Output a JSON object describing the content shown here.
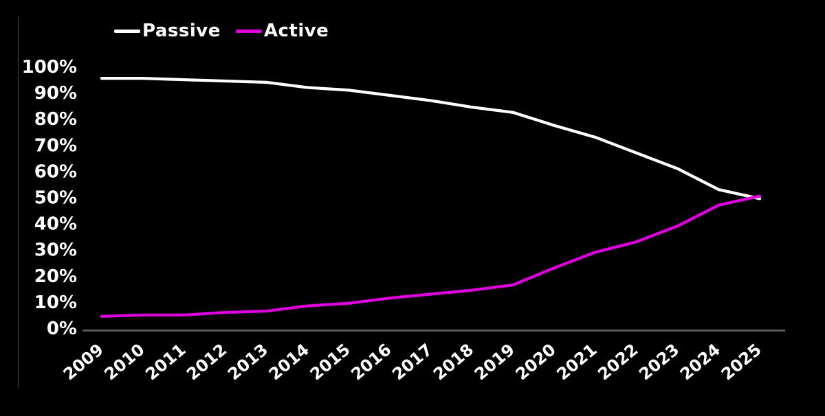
{
  "chart_data": {
    "type": "line",
    "title": "",
    "xlabel": "",
    "ylabel": "",
    "categories": [
      "2009",
      "2010",
      "2011",
      "2012",
      "2013",
      "2014",
      "2015",
      "2016",
      "2017",
      "2018",
      "2019",
      "2020",
      "2021",
      "2022",
      "2023",
      "2024",
      "2025"
    ],
    "series": [
      {
        "name": "Passive",
        "color": "#ffffff",
        "values": [
          95.5,
          95.5,
          95,
          94.5,
          94,
          92,
          91,
          89,
          87,
          84.5,
          82.5,
          77.5,
          73,
          67,
          61,
          53,
          49.5
        ]
      },
      {
        "name": "Active",
        "color": "#dd00dd",
        "values": [
          4.5,
          5,
          5,
          6,
          6.5,
          8.5,
          9.5,
          11.5,
          13,
          14.5,
          16.5,
          23,
          29,
          33,
          39,
          47,
          50.5
        ]
      }
    ],
    "y_tick_labels": [
      "100%",
      "90%",
      "80%",
      "70%",
      "60%",
      "50%",
      "40%",
      "30%",
      "20%",
      "10%",
      "0%"
    ],
    "y_tick_values": [
      100,
      90,
      80,
      70,
      60,
      50,
      40,
      30,
      20,
      10,
      0
    ],
    "ylim": [
      0,
      100
    ],
    "grid": false,
    "legend_position": "top-left",
    "colors": {
      "background": "#000000",
      "axis_line": "#5a5a5a",
      "tick_text": "#ffffff",
      "frame_line": "#2f2f2f"
    }
  }
}
